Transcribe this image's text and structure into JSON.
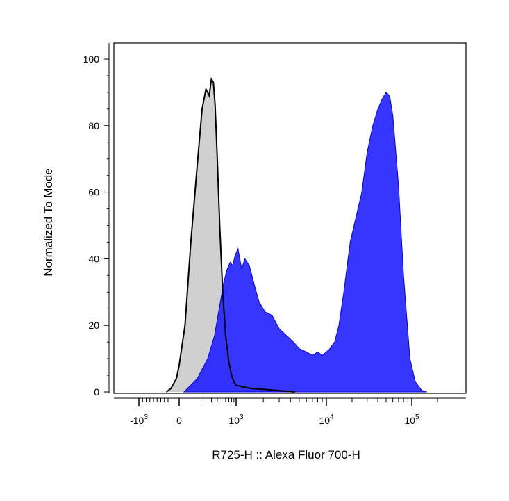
{
  "chart_data": {
    "type": "area",
    "xlabel": "R725-H :: Alexa Fluor 700-H",
    "ylabel": "Normalized To Mode",
    "x_scale": "biexponential",
    "ylim": [
      0,
      100
    ],
    "y_ticks": [
      0,
      20,
      40,
      60,
      80,
      100
    ],
    "x_ticks": [
      {
        "value": -1000,
        "label": "-10",
        "exp": "3"
      },
      {
        "value": 0,
        "label": "0",
        "exp": ""
      },
      {
        "value": 1000,
        "label": "10",
        "exp": "3"
      },
      {
        "value": 10000,
        "label": "10",
        "exp": "4"
      },
      {
        "value": 100000,
        "label": "10",
        "exp": "5"
      }
    ],
    "series": [
      {
        "color": "#d0d0d0",
        "stroke": "#000000",
        "x": [
          -250,
          -150,
          -50,
          0,
          60,
          110,
          150,
          190,
          230,
          270,
          300,
          330,
          360,
          400,
          450,
          520,
          600,
          700,
          800,
          900,
          1000,
          1200,
          1500,
          2000,
          2700,
          3500,
          4500
        ],
        "y": [
          0,
          1,
          4,
          8,
          20,
          45,
          68,
          85,
          91,
          89,
          94,
          93,
          86,
          70,
          50,
          30,
          17,
          9,
          5,
          3,
          2,
          1.5,
          1,
          0.8,
          0.5,
          0.2,
          0
        ]
      },
      {
        "color": "#1a1aff",
        "stroke": "#0000e0",
        "x": [
          50,
          150,
          250,
          350,
          450,
          550,
          650,
          750,
          850,
          950,
          1050,
          1150,
          1250,
          1400,
          1600,
          1800,
          2100,
          2500,
          3000,
          3600,
          4300,
          5000,
          6000,
          7000,
          8000,
          9000,
          10000,
          11000,
          12500,
          14000,
          16000,
          19000,
          22000,
          26000,
          30000,
          35000,
          40000,
          45000,
          50000,
          55000,
          60000,
          70000,
          80000,
          95000,
          110000,
          130000,
          150000
        ],
        "y": [
          0,
          4,
          10,
          17,
          26,
          33,
          37,
          39,
          38,
          41,
          43,
          37,
          40,
          38,
          32,
          27,
          24,
          23,
          19,
          17,
          15,
          13,
          12,
          11,
          12,
          11,
          12,
          13,
          15,
          20,
          30,
          45,
          52,
          60,
          72,
          80,
          85,
          88,
          90,
          89,
          83,
          62,
          35,
          10,
          3,
          0.5,
          0
        ]
      }
    ]
  }
}
